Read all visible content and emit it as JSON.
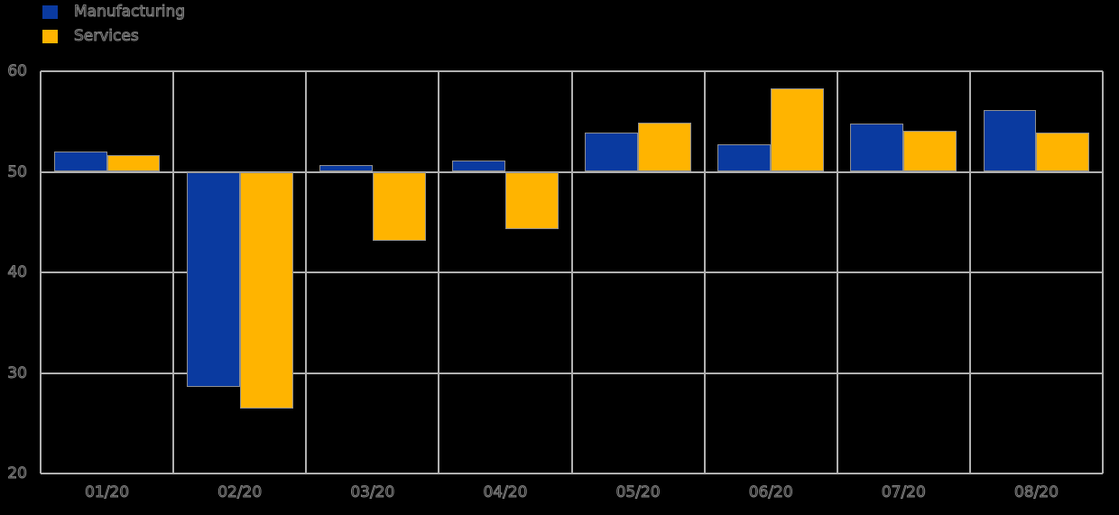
{
  "chart_data": {
    "type": "bar",
    "title": "",
    "xlabel": "",
    "ylabel": "",
    "categories": [
      "01/20",
      "02/20",
      "03/20",
      "04/20",
      "05/20",
      "06/20",
      "07/20",
      "08/20"
    ],
    "series": [
      {
        "name": "Manufacturing",
        "color": "#0a3aa0",
        "values": [
          52.0,
          28.6,
          50.7,
          51.1,
          53.9,
          52.7,
          54.8,
          56.1
        ]
      },
      {
        "name": "Services",
        "color": "#ffb400",
        "values": [
          51.7,
          26.5,
          43.1,
          44.3,
          54.9,
          58.3,
          54.1,
          53.9
        ]
      }
    ],
    "baseline": 50,
    "ylim": [
      20,
      60
    ],
    "yticks": [
      20,
      30,
      40,
      50,
      60
    ],
    "ytick_labels": [
      "20",
      "30",
      "40",
      "50",
      "60"
    ],
    "grid": true,
    "legend_position": "top-left",
    "colors": {
      "background": "#000000",
      "gridline": "#b0b0b0",
      "bar_edge": "#8f8f8f",
      "text_outline": "#828282"
    }
  }
}
